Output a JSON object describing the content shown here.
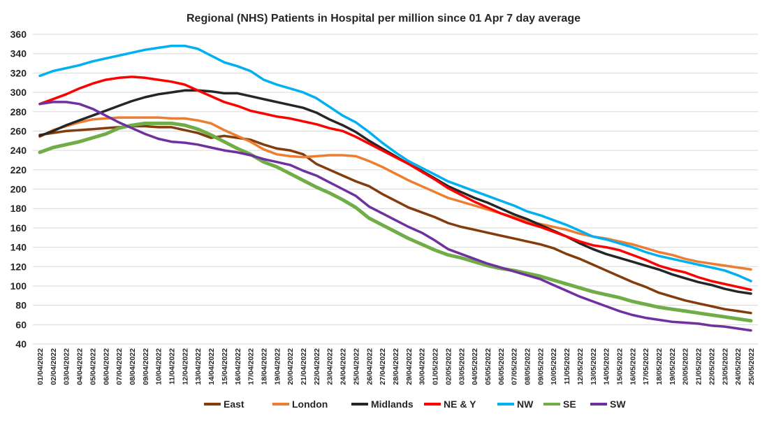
{
  "chart_data": {
    "type": "line",
    "title": "Regional (NHS) Patients in Hospital per million since 01 Apr 7 day average",
    "xlabel": "",
    "ylabel": "",
    "ylim": [
      40,
      360
    ],
    "yticks": [
      40,
      60,
      80,
      100,
      120,
      140,
      160,
      180,
      200,
      220,
      240,
      260,
      280,
      300,
      320,
      340,
      360
    ],
    "grid": true,
    "legend_position": "bottom",
    "x": [
      "01/04/2022",
      "02/04/2022",
      "03/04/2022",
      "04/04/2022",
      "05/04/2022",
      "06/04/2022",
      "07/04/2022",
      "08/04/2022",
      "09/04/2022",
      "10/04/2022",
      "11/04/2022",
      "12/04/2022",
      "13/04/2022",
      "14/04/2022",
      "15/04/2022",
      "16/04/2022",
      "17/04/2022",
      "18/04/2022",
      "19/04/2022",
      "20/04/2022",
      "21/04/2022",
      "22/04/2022",
      "23/04/2022",
      "24/04/2022",
      "25/04/2022",
      "26/04/2022",
      "27/04/2022",
      "28/04/2022",
      "29/04/2022",
      "30/04/2022",
      "01/05/2022",
      "02/05/2022",
      "03/05/2022",
      "04/05/2022",
      "05/05/2022",
      "06/05/2022",
      "07/05/2022",
      "08/05/2022",
      "09/05/2022",
      "10/05/2022",
      "11/05/2022",
      "12/05/2022",
      "13/05/2022",
      "14/05/2022",
      "15/05/2022",
      "16/05/2022",
      "17/05/2022",
      "18/05/2022",
      "19/05/2022",
      "20/05/2022",
      "21/05/2022",
      "22/05/2022",
      "23/05/2022",
      "24/05/2022",
      "25/05/2022"
    ],
    "series": [
      {
        "name": "East",
        "color": "#843C0C",
        "values": [
          256,
          258,
          260,
          261,
          262,
          263,
          264,
          265,
          265,
          264,
          264,
          261,
          258,
          253,
          255,
          253,
          251,
          246,
          242,
          240,
          236,
          226,
          220,
          214,
          208,
          203,
          195,
          188,
          181,
          176,
          171,
          165,
          161,
          158,
          155,
          152,
          149,
          146,
          143,
          139,
          133,
          128,
          122,
          116,
          110,
          104,
          99,
          93,
          89,
          85,
          82,
          79,
          76,
          74,
          72
        ]
      },
      {
        "name": "London",
        "color": "#ED7D31",
        "values": [
          254,
          261,
          265,
          269,
          272,
          273,
          274,
          274,
          274,
          274,
          273,
          273,
          271,
          268,
          261,
          255,
          249,
          241,
          236,
          234,
          233,
          234,
          235,
          235,
          234,
          229,
          223,
          216,
          209,
          203,
          197,
          191,
          187,
          183,
          179,
          175,
          171,
          167,
          164,
          161,
          158,
          154,
          151,
          149,
          146,
          143,
          139,
          135,
          132,
          128,
          125,
          123,
          121,
          119,
          117
        ]
      },
      {
        "name": "Midlands",
        "color": "#262626",
        "values": [
          255,
          260,
          266,
          271,
          276,
          281,
          286,
          291,
          295,
          298,
          300,
          302,
          302,
          301,
          299,
          299,
          296,
          293,
          290,
          287,
          284,
          279,
          272,
          266,
          259,
          250,
          242,
          234,
          226,
          219,
          211,
          203,
          197,
          191,
          186,
          180,
          174,
          169,
          163,
          157,
          151,
          144,
          138,
          133,
          129,
          125,
          121,
          117,
          112,
          108,
          104,
          101,
          97,
          94,
          92
        ]
      },
      {
        "name": "NE & Y",
        "color": "#FF0000",
        "values": [
          288,
          293,
          298,
          304,
          309,
          313,
          315,
          316,
          315,
          313,
          311,
          308,
          302,
          296,
          290,
          286,
          281,
          278,
          275,
          273,
          270,
          267,
          263,
          260,
          254,
          247,
          240,
          233,
          226,
          218,
          210,
          201,
          194,
          187,
          181,
          175,
          170,
          165,
          161,
          156,
          151,
          146,
          142,
          140,
          137,
          132,
          127,
          121,
          117,
          114,
          109,
          105,
          102,
          99,
          96
        ]
      },
      {
        "name": "NW",
        "color": "#00B0F0",
        "values": [
          317,
          322,
          325,
          328,
          332,
          335,
          338,
          341,
          344,
          346,
          348,
          348,
          345,
          338,
          331,
          327,
          322,
          313,
          308,
          304,
          300,
          294,
          285,
          276,
          269,
          259,
          248,
          238,
          229,
          222,
          215,
          208,
          203,
          198,
          193,
          188,
          183,
          177,
          173,
          168,
          163,
          157,
          151,
          148,
          144,
          140,
          135,
          131,
          128,
          125,
          122,
          119,
          116,
          111,
          105
        ]
      },
      {
        "name": "SE",
        "color": "#70AD47",
        "values": [
          238,
          243,
          246,
          249,
          253,
          257,
          263,
          266,
          268,
          268,
          268,
          266,
          262,
          256,
          249,
          242,
          236,
          228,
          223,
          216,
          209,
          202,
          196,
          189,
          181,
          170,
          163,
          156,
          149,
          143,
          137,
          132,
          129,
          125,
          121,
          118,
          116,
          113,
          110,
          106,
          102,
          98,
          94,
          91,
          88,
          84,
          81,
          78,
          76,
          74,
          72,
          70,
          68,
          66,
          64
        ]
      },
      {
        "name": "SW",
        "color": "#7030A0",
        "values": [
          288,
          290,
          290,
          288,
          283,
          276,
          269,
          263,
          257,
          252,
          249,
          248,
          246,
          243,
          240,
          238,
          235,
          231,
          228,
          225,
          219,
          214,
          207,
          200,
          193,
          182,
          175,
          168,
          161,
          155,
          147,
          138,
          133,
          128,
          123,
          119,
          115,
          111,
          107,
          101,
          95,
          89,
          84,
          79,
          74,
          70,
          67,
          65,
          63,
          62,
          61,
          59,
          58,
          56,
          54
        ]
      }
    ]
  }
}
